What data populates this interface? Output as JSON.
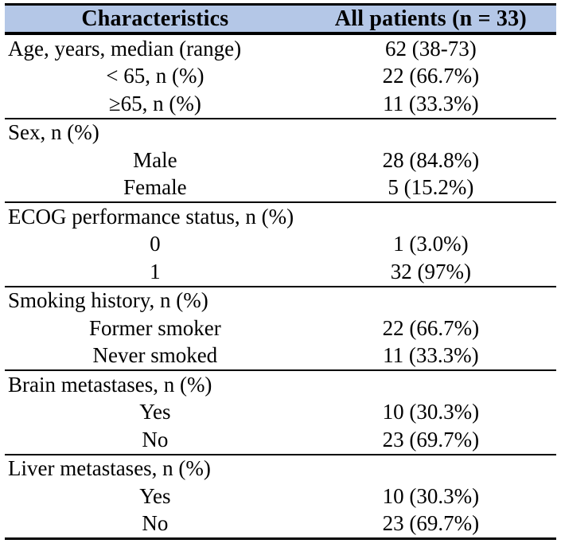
{
  "table": {
    "header": {
      "col1": "Characteristics",
      "col2": "All patients (n = 33)"
    },
    "sections": [
      {
        "rows": [
          {
            "label": "Age, years, median (range)",
            "value": "62 (38-73)",
            "indent": false
          },
          {
            "label": "< 65, n (%)",
            "value": "22 (66.7%)",
            "indent": true
          },
          {
            "label": "≥65, n (%)",
            "value": "11 (33.3%)",
            "indent": true
          }
        ]
      },
      {
        "rows": [
          {
            "label": "Sex, n (%)",
            "value": "",
            "indent": false
          },
          {
            "label": "Male",
            "value": "28 (84.8%)",
            "indent": true
          },
          {
            "label": "Female",
            "value": "5 (15.2%)",
            "indent": true
          }
        ]
      },
      {
        "rows": [
          {
            "label": "ECOG performance status, n (%)",
            "value": "",
            "indent": false
          },
          {
            "label": "0",
            "value": "1 (3.0%)",
            "indent": true
          },
          {
            "label": "1",
            "value": "32 (97%)",
            "indent": true
          }
        ]
      },
      {
        "rows": [
          {
            "label": "Smoking history, n (%)",
            "value": "",
            "indent": false
          },
          {
            "label": "Former smoker",
            "value": "22 (66.7%)",
            "indent": true
          },
          {
            "label": "Never smoked",
            "value": "11 (33.3%)",
            "indent": true
          }
        ]
      },
      {
        "rows": [
          {
            "label": "Brain metastases, n (%)",
            "value": "",
            "indent": false
          },
          {
            "label": "Yes",
            "value": "10 (30.3%)",
            "indent": true
          },
          {
            "label": "No",
            "value": "23 (69.7%)",
            "indent": true
          }
        ]
      },
      {
        "rows": [
          {
            "label": "Liver metastases, n (%)",
            "value": "",
            "indent": false
          },
          {
            "label": "Yes",
            "value": "10 (30.3%)",
            "indent": true
          },
          {
            "label": "No",
            "value": "23 (69.7%)",
            "indent": true
          }
        ]
      }
    ]
  },
  "colors": {
    "header_bg": "#B4C7E7",
    "border": "#000000"
  }
}
